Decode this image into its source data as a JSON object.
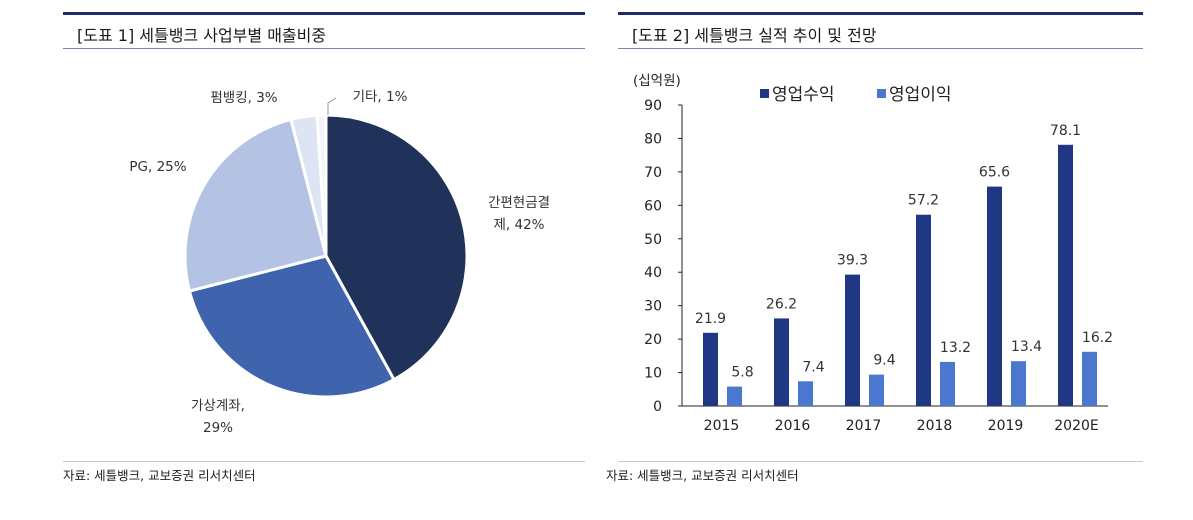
{
  "left": {
    "title": "[도표 1] 세틀뱅크 사업부별 매출비중",
    "source": "자료: 세틀뱅크, 교보증권 리서치센터"
  },
  "right": {
    "title": "[도표 2] 세틀뱅크 실적 추이 및 전망",
    "source": "자료: 세틀뱅크, 교보증권 리서치센터"
  },
  "colors": {
    "navy": "#20325a",
    "blue": "#3f63ad",
    "light_blue": "#b4c3e4",
    "pale": "#dde4f3",
    "bar_revenue": "#1f3784",
    "bar_profit": "#4a78cf"
  },
  "chart_data": [
    {
      "type": "pie",
      "title": "[도표 1] 세틀뱅크 사업부별 매출비중",
      "slices": [
        {
          "label_lines": [
            "간편현금결",
            "제, 42%"
          ],
          "value": 42
        },
        {
          "label_lines": [
            "가상계좌,",
            "29%"
          ],
          "value": 29
        },
        {
          "label_lines": [
            "PG, 25%"
          ],
          "value": 25
        },
        {
          "label_lines": [
            "펌뱅킹, 3%"
          ],
          "value": 3
        },
        {
          "label_lines": [
            "기타, 1%"
          ],
          "value": 1
        }
      ]
    },
    {
      "type": "bar",
      "title": "[도표 2] 세틀뱅크 실적 추이 및 전망",
      "unit_label": "(십억원)",
      "categories": [
        "2015",
        "2016",
        "2017",
        "2018",
        "2019",
        "2020E"
      ],
      "series": [
        {
          "name": "영업수익",
          "values": [
            21.9,
            26.2,
            39.3,
            57.2,
            65.6,
            78.1
          ]
        },
        {
          "name": "영업이익",
          "values": [
            5.8,
            7.4,
            9.4,
            13.2,
            13.4,
            16.2
          ]
        }
      ],
      "ylim": [
        0,
        90
      ],
      "yticks": [
        0,
        10,
        20,
        30,
        40,
        50,
        60,
        70,
        80,
        90
      ],
      "grid": false,
      "legend": "top"
    }
  ]
}
